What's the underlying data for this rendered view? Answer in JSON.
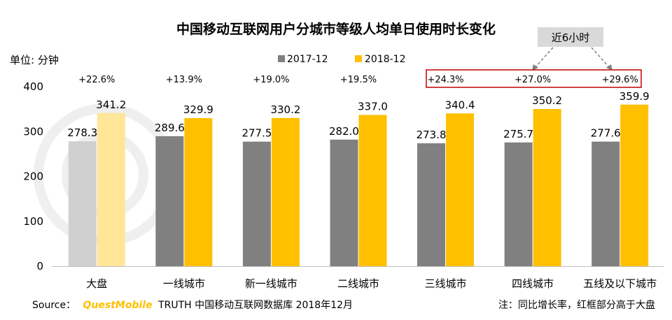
{
  "chart_data": {
    "type": "bar",
    "title": "中国移动互联网用户分城市等级人均单日使用时长变化",
    "ylabel": "单位: 分钟",
    "ylim": [
      0,
      400
    ],
    "yticks": [
      0,
      100,
      200,
      300,
      400
    ],
    "grid": false,
    "legend_position": "top-center",
    "categories": [
      "大盘",
      "一线城市",
      "新一线城市",
      "二线城市",
      "三线城市",
      "四线城市",
      "五线及以下城市"
    ],
    "series": [
      {
        "name": "2017-12",
        "color": "#808080",
        "values": [
          278.3,
          289.6,
          277.5,
          282.0,
          273.8,
          275.7,
          277.6
        ],
        "labels": [
          "278.3",
          "289.6",
          "277.5",
          "282.0",
          "273.8",
          "275.7",
          "277.6"
        ]
      },
      {
        "name": "2018-12",
        "color": "#FFC000",
        "values": [
          341.2,
          329.9,
          330.2,
          337.0,
          340.4,
          350.2,
          359.9
        ],
        "labels": [
          "341.2",
          "329.9",
          "330.2",
          "337.0",
          "340.4",
          "350.2",
          "359.9"
        ]
      }
    ],
    "highlight_first_category_colors": [
      "#d0d0d0",
      "#ffe699"
    ],
    "growth_labels": [
      "+22.6%",
      "+13.9%",
      "+19.0%",
      "+19.5%",
      "+24.3%",
      "+27.0%",
      "+29.6%"
    ],
    "highlight_box_color": "#c00000",
    "callout": "近6小时",
    "source_prefix": "Source：",
    "source_brand": "QuestMobile",
    "source_rest": "TRUTH 中国移动互联网数据库 2018年12月",
    "note": "注：同比增长率，红框部分高于大盘"
  }
}
